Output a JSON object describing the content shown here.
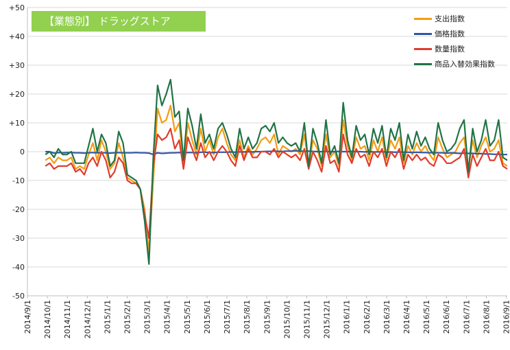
{
  "chart_data": {
    "type": "line",
    "title": "【業態別】 ドラッグストア",
    "ylim": [
      -50,
      50
    ],
    "y_ticks": [
      "+50",
      "+40",
      "+30",
      "+20",
      "+10",
      "0",
      "-10",
      "-20",
      "-30",
      "-40",
      "-50"
    ],
    "x_tick_labels": [
      "2014/9/1",
      "2014/10/1",
      "2014/11/1",
      "2014/12/1",
      "2015/1/1",
      "2015/2/1",
      "2015/3/1",
      "2015/4/1",
      "2015/5/1",
      "2015/6/1",
      "2015/7/1",
      "2015/8/1",
      "2015/9/1",
      "2015/10/1",
      "2015/11/1",
      "2015/12/1",
      "2016/1/1",
      "2016/2/1",
      "2016/3/1",
      "2016/4/1",
      "2016/5/1",
      "2016/6/1",
      "2016/7/1",
      "2016/8/1",
      "2016/9/1"
    ],
    "legend_position": "top-right",
    "grid": true,
    "series": [
      {
        "name": "支出指数",
        "color": "#f39c12",
        "values": [
          -3,
          -2,
          -4,
          -2,
          -3,
          -3,
          -2,
          -6,
          -5,
          -6,
          -1,
          3,
          -3,
          4,
          0,
          -6,
          -4,
          3,
          -2,
          -9,
          -10,
          -11,
          -13,
          -20,
          -35,
          -10,
          15,
          10,
          11,
          16,
          7,
          10,
          -5,
          10,
          4,
          -1,
          8,
          0,
          4,
          -1,
          5,
          8,
          3,
          -1,
          -3,
          4,
          -2,
          2,
          -1,
          1,
          4,
          5,
          3,
          6,
          -1,
          2,
          1,
          0,
          1,
          -1,
          6,
          -5,
          4,
          1,
          -5,
          6,
          -2,
          0,
          -5,
          11,
          2,
          -3,
          5,
          1,
          2,
          -3,
          4,
          0,
          5,
          -3,
          4,
          1,
          5,
          -4,
          2,
          -1,
          3,
          0,
          2,
          -1,
          -3,
          5,
          1,
          -2,
          -1,
          0,
          3,
          5,
          -6,
          4,
          -2,
          2,
          5,
          0,
          1,
          4,
          -4,
          -5
        ]
      },
      {
        "name": "価格指数",
        "color": "#2f55a4",
        "values": [
          0,
          0,
          -0.5,
          -0.3,
          -0.4,
          -0.3,
          -0.3,
          -0.4,
          -0.4,
          -0.5,
          -0.4,
          -0.3,
          -0.4,
          -0.4,
          -0.4,
          -0.5,
          -0.4,
          -0.3,
          -0.4,
          -0.4,
          -0.4,
          -0.3,
          -0.4,
          -0.4,
          -0.5,
          -1,
          -0.4,
          -0.6,
          -0.5,
          -0.4,
          -0.4,
          -0.3,
          -0.4,
          -0.3,
          -0.3,
          -0.4,
          -0.2,
          -0.2,
          -0.3,
          -0.3,
          -0.2,
          -0.2,
          -0.2,
          -0.1,
          -0.2,
          -0.1,
          -0.1,
          0,
          -0.1,
          0,
          0,
          0.1,
          0.1,
          0.2,
          0.1,
          0.1,
          0.2,
          0.2,
          0.3,
          0.2,
          0.1,
          0.2,
          0.1,
          0,
          0,
          0.1,
          0,
          0,
          0.1,
          0,
          0,
          0.1,
          0,
          0,
          -0.1,
          0,
          -0.1,
          -0.1,
          0,
          -0.2,
          -0.1,
          -0.2,
          -0.1,
          -0.2,
          -0.2,
          -0.3,
          -0.2,
          -0.3,
          -0.3,
          -0.4,
          -0.3,
          -0.4,
          -0.4,
          -0.5,
          -0.4,
          -0.5,
          -0.6,
          -0.5,
          -0.6,
          -0.6,
          -0.7,
          -0.7,
          -0.8,
          -0.8,
          -0.9,
          -0.9,
          -1.0,
          -1.0
        ]
      },
      {
        "name": "数量指数",
        "color": "#e03c2c",
        "values": [
          -5,
          -4,
          -6,
          -5,
          -5,
          -5,
          -4,
          -7,
          -6,
          -8,
          -4,
          -2,
          -5,
          0,
          -3,
          -9,
          -7,
          -2,
          -4,
          -10,
          -11,
          -11,
          -13,
          -22,
          -30,
          -5,
          6,
          4,
          5,
          8,
          1,
          4,
          -6,
          5,
          1,
          -3,
          3,
          -2,
          0,
          -3,
          0,
          2,
          0,
          -3,
          -5,
          2,
          -3,
          1,
          -2,
          -2,
          0,
          0,
          -1,
          1,
          -2,
          0,
          -1,
          -2,
          -1,
          -3,
          1,
          -6,
          0,
          -3,
          -7,
          2,
          -4,
          -3,
          -7,
          6,
          -1,
          -4,
          1,
          -2,
          -1,
          -5,
          0,
          -2,
          1,
          -5,
          0,
          -2,
          1,
          -6,
          -1,
          -3,
          -1,
          -3,
          -2,
          -4,
          -5,
          -1,
          -2,
          -4,
          -4,
          -3,
          -2,
          1,
          -9,
          -1,
          -5,
          -2,
          1,
          -3,
          -3,
          0,
          -5,
          -6
        ]
      },
      {
        "name": "商品入替効果指数",
        "color": "#217346",
        "values": [
          -1,
          0,
          -2,
          1,
          -1,
          -1,
          0,
          -4,
          -4,
          -4,
          2,
          8,
          0,
          6,
          3,
          -5,
          -3,
          7,
          3,
          -8,
          -9,
          -10,
          -13,
          -24,
          -39,
          -2,
          23,
          16,
          20,
          25,
          12,
          14,
          -3,
          15,
          9,
          1,
          13,
          3,
          6,
          1,
          8,
          10,
          6,
          1,
          -2,
          8,
          1,
          5,
          1,
          3,
          8,
          9,
          7,
          10,
          3,
          5,
          3,
          2,
          3,
          0,
          10,
          -5,
          8,
          3,
          -4,
          11,
          -1,
          2,
          -4,
          17,
          4,
          -2,
          9,
          4,
          6,
          -1,
          8,
          3,
          9,
          -2,
          8,
          4,
          10,
          -3,
          6,
          1,
          7,
          2,
          5,
          1,
          -1,
          10,
          4,
          0,
          1,
          3,
          8,
          11,
          -7,
          8,
          0,
          4,
          11,
          2,
          4,
          11,
          -2,
          -3
        ]
      }
    ]
  }
}
